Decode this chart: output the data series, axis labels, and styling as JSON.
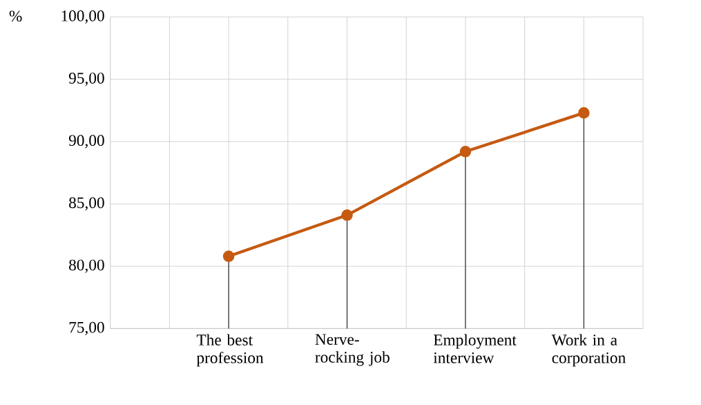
{
  "chart_data": {
    "type": "line",
    "categories": [
      "The best profession",
      "Nerve-rocking job",
      "Employment interview",
      "Work in a corporation"
    ],
    "values": [
      80.8,
      84.1,
      89.2,
      92.3
    ],
    "errors": [
      [
        75,
        80.8
      ],
      [
        75,
        84.1
      ],
      [
        75,
        89.2
      ],
      [
        75,
        92.3
      ]
    ],
    "color": "#c55a11",
    "ylabel": "%",
    "ylim": [
      75,
      100
    ],
    "yticks": [
      {
        "value": 75,
        "label": "75,00"
      },
      {
        "value": 80,
        "label": "80,00"
      },
      {
        "value": 85,
        "label": "85,00"
      },
      {
        "value": 90,
        "label": "90,00"
      },
      {
        "value": 95,
        "label": "95,00"
      },
      {
        "value": 100,
        "label": "100,00"
      }
    ],
    "grid": true,
    "marker": "circle",
    "line_style": "solid"
  }
}
